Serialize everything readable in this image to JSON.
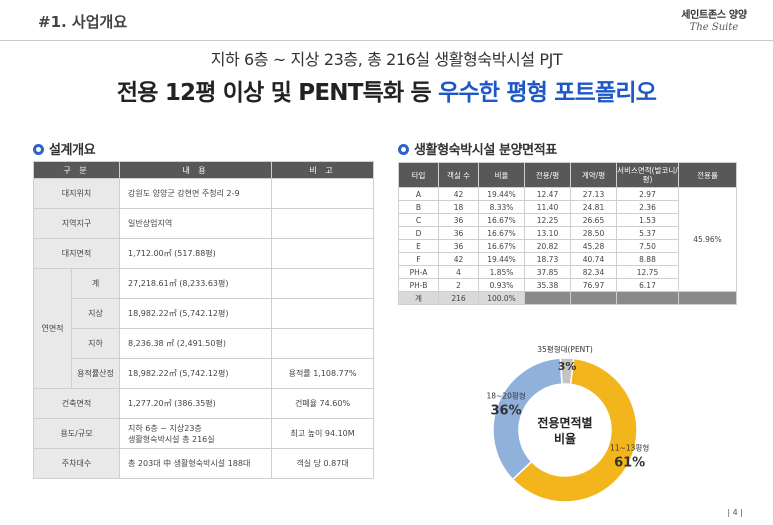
{
  "header": {
    "section": "#1. 사업개요",
    "brand_main": "세인트존스 양양",
    "brand_sub": "The Suite"
  },
  "subtitle": "지하 6층 ~ 지상 23층, 총 216실 생활형숙박시설 PJT",
  "headline": {
    "part1": "전용 12평 이상 및 PENT특화 등 ",
    "part2": "우수한 평형 포트폴리오"
  },
  "design": {
    "title": "설계개요",
    "headers": [
      "구 분",
      "내 용",
      "비 고"
    ],
    "rows": {
      "location": {
        "label": "대지위치",
        "value": "강원도 양양군 강현면 주청리 2-9",
        "note": ""
      },
      "zone": {
        "label": "지역지구",
        "value": "일반상업지역",
        "note": ""
      },
      "site_area": {
        "label": "대지면적",
        "value": "1,712.00㎡ (517.88평)",
        "note": ""
      },
      "gfa_label": "연면적",
      "gfa_total": {
        "label": "계",
        "value": "27,218.61㎡ (8,233.63평)",
        "note": ""
      },
      "gfa_above": {
        "label": "지상",
        "value": "18,982.22㎡ (5,742.12평)",
        "note": ""
      },
      "gfa_below": {
        "label": "지하",
        "value": "8,236.38 ㎡ (2,491.50평)",
        "note": ""
      },
      "gfa_far": {
        "label": "용적률산정",
        "value": "18,982.22㎡ (5,742.12평)",
        "note": "용적률 1,108.77%"
      },
      "building": {
        "label": "건축면적",
        "value": "1,277.20㎡ (386.35평)",
        "note": "건폐율 74.60%"
      },
      "use": {
        "label": "용도/규모",
        "value1": "지하 6층 ~ 지상23층",
        "value2": "생활형숙박시설 총 216실",
        "note": "최고 높이 94.10M"
      },
      "parking": {
        "label": "주차대수",
        "value": "총 203대 中 생활형숙박시설 188대",
        "note": "객실 당 0.87대"
      }
    }
  },
  "area_table": {
    "title": "생활형숙박시설 분양면적표",
    "headers": [
      "타입",
      "객실 수",
      "비율",
      "전용/평",
      "계약/평",
      "서비스면적(발코니/평)",
      "전용률"
    ],
    "rows": [
      [
        "A",
        "42",
        "19.44%",
        "12.47",
        "27.13",
        "2.97"
      ],
      [
        "B",
        "18",
        "8.33%",
        "11.40",
        "24.81",
        "2.36"
      ],
      [
        "C",
        "36",
        "16.67%",
        "12.25",
        "26.65",
        "1.53"
      ],
      [
        "D",
        "36",
        "16.67%",
        "13.10",
        "28.50",
        "5.37"
      ],
      [
        "E",
        "36",
        "16.67%",
        "20.82",
        "45.28",
        "7.50"
      ],
      [
        "F",
        "42",
        "19.44%",
        "18.73",
        "40.74",
        "8.88"
      ],
      [
        "PH-A",
        "4",
        "1.85%",
        "37.85",
        "82.34",
        "12.75"
      ],
      [
        "PH-B",
        "2",
        "0.93%",
        "35.38",
        "76.97",
        "6.17"
      ]
    ],
    "ratio": "45.96%",
    "total": {
      "label": "계",
      "count": "216",
      "ratio": "100.0%"
    }
  },
  "chart_data": {
    "type": "pie",
    "title": "전용면적별 비율",
    "series": [
      {
        "name": "11~13평형",
        "value": 61,
        "label": "61%",
        "color": "#f2b51b"
      },
      {
        "name": "18~20평형",
        "value": 36,
        "label": "36%",
        "color": "#8fb1dc"
      },
      {
        "name": "35평형대(PENT)",
        "value": 3,
        "label": "3%",
        "color": "#c4c4c4"
      }
    ]
  },
  "page_number": "| 4 |"
}
